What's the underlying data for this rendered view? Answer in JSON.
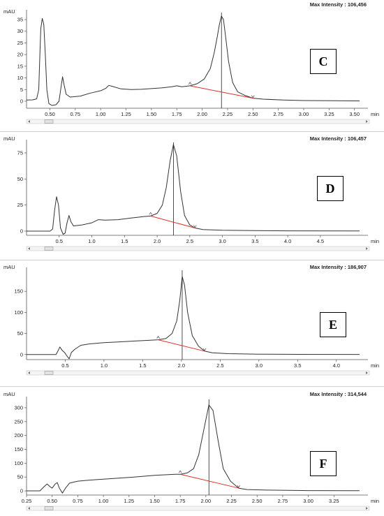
{
  "colors": {
    "trace": "#333333",
    "baseline": "#d9322b",
    "marker": "#444444"
  },
  "chart_data": [
    {
      "type": "line",
      "panel_label": "C",
      "max_intensity": "Max Intensity : 106,456",
      "ylabel": "mAU",
      "xlabel": "min",
      "xlim": [
        0.27,
        3.55
      ],
      "ylim": [
        -3,
        38
      ],
      "x_ticks": [
        0.5,
        0.75,
        1.0,
        1.25,
        1.5,
        1.75,
        2.0,
        2.25,
        2.5,
        2.75,
        3.0,
        3.25,
        3.5
      ],
      "x_tick_labels": [
        "0.50",
        "0.75",
        "1.00",
        "1.25",
        "1.50",
        "1.75",
        "2.00",
        "2.25",
        "2.50",
        "2.75",
        "3.00",
        "3.25",
        "3.50"
      ],
      "y_ticks": [
        0,
        5,
        10,
        15,
        20,
        25,
        30,
        35
      ],
      "y_tick_labels": [
        "0",
        "5",
        "10",
        "15",
        "20",
        "25",
        "30",
        "35"
      ],
      "trace": [
        [
          0.27,
          0.5
        ],
        [
          0.33,
          0.6
        ],
        [
          0.37,
          1
        ],
        [
          0.39,
          5
        ],
        [
          0.4,
          18
        ],
        [
          0.41,
          31
        ],
        [
          0.425,
          35.5
        ],
        [
          0.44,
          33
        ],
        [
          0.455,
          20
        ],
        [
          0.47,
          5
        ],
        [
          0.49,
          -1
        ],
        [
          0.52,
          -1.8
        ],
        [
          0.56,
          -1.5
        ],
        [
          0.59,
          0
        ],
        [
          0.61,
          6
        ],
        [
          0.625,
          10.5
        ],
        [
          0.64,
          7
        ],
        [
          0.66,
          3
        ],
        [
          0.7,
          1.8
        ],
        [
          0.8,
          2.2
        ],
        [
          0.9,
          3.5
        ],
        [
          1.0,
          4.5
        ],
        [
          1.05,
          5.5
        ],
        [
          1.08,
          6.8
        ],
        [
          1.12,
          6.3
        ],
        [
          1.2,
          5.3
        ],
        [
          1.3,
          5.0
        ],
        [
          1.4,
          5.1
        ],
        [
          1.5,
          5.4
        ],
        [
          1.6,
          5.7
        ],
        [
          1.7,
          6.2
        ],
        [
          1.75,
          6.6
        ],
        [
          1.8,
          6.2
        ],
        [
          1.88,
          6.6
        ],
        [
          1.95,
          7.5
        ],
        [
          2.02,
          9.5
        ],
        [
          2.08,
          14
        ],
        [
          2.12,
          21
        ],
        [
          2.15,
          28
        ],
        [
          2.17,
          33
        ],
        [
          2.19,
          36.5
        ],
        [
          2.21,
          35
        ],
        [
          2.23,
          28
        ],
        [
          2.26,
          17
        ],
        [
          2.3,
          8
        ],
        [
          2.35,
          4
        ],
        [
          2.42,
          2.5
        ],
        [
          2.5,
          1.3
        ],
        [
          2.6,
          0.9
        ],
        [
          2.8,
          0.5
        ],
        [
          3.0,
          0.3
        ],
        [
          3.3,
          0.2
        ],
        [
          3.55,
          0.15
        ]
      ],
      "baseline_start": [
        1.88,
        6.6
      ],
      "baseline_end": [
        2.5,
        1.3
      ],
      "peak_x": 2.19
    },
    {
      "type": "line",
      "panel_label": "D",
      "max_intensity": "Max Intensity : 106,457",
      "ylabel": "mAU",
      "xlabel": "min",
      "xlim": [
        0.0,
        5.1
      ],
      "ylim": [
        -4,
        85
      ],
      "x_ticks": [
        0.5,
        1.0,
        1.5,
        2.0,
        2.5,
        3.0,
        3.5,
        4.0,
        4.5
      ],
      "x_tick_labels": [
        "0.5",
        "1.0",
        "1.5",
        "2.0",
        "2.5",
        "3.0",
        "3.5",
        "4.0",
        "4.5"
      ],
      "y_ticks": [
        0,
        25,
        50,
        75
      ],
      "y_tick_labels": [
        "0",
        "25",
        "50",
        "75"
      ],
      "trace": [
        [
          0.0,
          0
        ],
        [
          0.36,
          0
        ],
        [
          0.4,
          2
        ],
        [
          0.43,
          20
        ],
        [
          0.46,
          33
        ],
        [
          0.49,
          25
        ],
        [
          0.52,
          3
        ],
        [
          0.56,
          -3
        ],
        [
          0.59,
          -2
        ],
        [
          0.62,
          8
        ],
        [
          0.65,
          15
        ],
        [
          0.68,
          9
        ],
        [
          0.72,
          5
        ],
        [
          0.85,
          6
        ],
        [
          1.0,
          8
        ],
        [
          1.1,
          11
        ],
        [
          1.2,
          10.5
        ],
        [
          1.4,
          11
        ],
        [
          1.6,
          12.5
        ],
        [
          1.8,
          14
        ],
        [
          1.9,
          14.5
        ],
        [
          2.0,
          17
        ],
        [
          2.08,
          25
        ],
        [
          2.14,
          42
        ],
        [
          2.2,
          68
        ],
        [
          2.25,
          83
        ],
        [
          2.3,
          72
        ],
        [
          2.36,
          38
        ],
        [
          2.42,
          15
        ],
        [
          2.5,
          6
        ],
        [
          2.58,
          3
        ],
        [
          2.7,
          1.5
        ],
        [
          3.0,
          0.8
        ],
        [
          3.5,
          0.5
        ],
        [
          4.0,
          0.3
        ],
        [
          5.1,
          0.2
        ]
      ],
      "baseline_start": [
        1.9,
        14.5
      ],
      "baseline_end": [
        2.58,
        3
      ],
      "peak_x": 2.25
    },
    {
      "type": "line",
      "panel_label": "E",
      "max_intensity": "Max Intensity : 186,907",
      "ylabel": "mAU",
      "xlabel": "min",
      "xlim": [
        0.0,
        4.3
      ],
      "ylim": [
        -12,
        200
      ],
      "x_ticks": [
        0.5,
        1.0,
        1.5,
        2.0,
        2.5,
        3.0,
        3.5,
        4.0
      ],
      "x_tick_labels": [
        "0.5",
        "1.0",
        "1.5",
        "2.0",
        "2.5",
        "3.0",
        "3.5",
        "4.0"
      ],
      "y_ticks": [
        0,
        50,
        100,
        150
      ],
      "y_tick_labels": [
        "0",
        "50",
        "100",
        "150"
      ],
      "trace": [
        [
          0.0,
          0
        ],
        [
          0.38,
          0
        ],
        [
          0.41,
          10
        ],
        [
          0.43,
          18
        ],
        [
          0.46,
          10
        ],
        [
          0.49,
          5
        ],
        [
          0.52,
          -3
        ],
        [
          0.55,
          -10
        ],
        [
          0.58,
          5
        ],
        [
          0.62,
          12
        ],
        [
          0.7,
          22
        ],
        [
          0.8,
          25
        ],
        [
          1.0,
          28
        ],
        [
          1.2,
          30
        ],
        [
          1.4,
          32
        ],
        [
          1.6,
          34
        ],
        [
          1.7,
          35
        ],
        [
          1.8,
          38
        ],
        [
          1.88,
          50
        ],
        [
          1.94,
          80
        ],
        [
          1.98,
          130
        ],
        [
          2.01,
          185
        ],
        [
          2.04,
          165
        ],
        [
          2.08,
          100
        ],
        [
          2.14,
          45
        ],
        [
          2.22,
          20
        ],
        [
          2.3,
          8
        ],
        [
          2.4,
          4
        ],
        [
          2.6,
          2
        ],
        [
          3.0,
          1
        ],
        [
          3.5,
          0.5
        ],
        [
          4.3,
          0.3
        ]
      ],
      "baseline_start": [
        1.7,
        35
      ],
      "baseline_end": [
        2.3,
        8
      ],
      "peak_x": 2.01
    },
    {
      "type": "line",
      "panel_label": "F",
      "max_intensity": "Max Intensity : 314,544",
      "ylabel": "mAU",
      "xlabel": "min",
      "xlim": [
        0.25,
        3.5
      ],
      "ylim": [
        -15,
        330
      ],
      "x_ticks": [
        0.25,
        0.5,
        0.75,
        1.0,
        1.25,
        1.5,
        1.75,
        2.0,
        2.25,
        2.5,
        2.75,
        3.0,
        3.25
      ],
      "x_tick_labels": [
        "0.25",
        "0.50",
        "0.75",
        "1.00",
        "1.25",
        "1.50",
        "1.75",
        "2.00",
        "2.25",
        "2.50",
        "2.75",
        "3.00",
        "3.25"
      ],
      "y_ticks": [
        0,
        50,
        100,
        150,
        200,
        250,
        300
      ],
      "y_tick_labels": [
        "0",
        "50",
        "100",
        "150",
        "200",
        "250",
        "300"
      ],
      "trace": [
        [
          0.25,
          0
        ],
        [
          0.38,
          0
        ],
        [
          0.42,
          15
        ],
        [
          0.45,
          25
        ],
        [
          0.48,
          15
        ],
        [
          0.5,
          10
        ],
        [
          0.53,
          25
        ],
        [
          0.55,
          30
        ],
        [
          0.57,
          10
        ],
        [
          0.6,
          -8
        ],
        [
          0.63,
          10
        ],
        [
          0.67,
          28
        ],
        [
          0.75,
          35
        ],
        [
          0.9,
          40
        ],
        [
          1.1,
          45
        ],
        [
          1.3,
          50
        ],
        [
          1.5,
          56
        ],
        [
          1.7,
          60
        ],
        [
          1.75,
          60
        ],
        [
          1.82,
          65
        ],
        [
          1.88,
          80
        ],
        [
          1.93,
          130
        ],
        [
          1.98,
          220
        ],
        [
          2.03,
          310
        ],
        [
          2.07,
          290
        ],
        [
          2.12,
          180
        ],
        [
          2.17,
          80
        ],
        [
          2.24,
          35
        ],
        [
          2.32,
          10
        ],
        [
          2.4,
          5
        ],
        [
          2.6,
          3
        ],
        [
          3.0,
          1
        ],
        [
          3.5,
          0.5
        ]
      ],
      "baseline_start": [
        1.75,
        60
      ],
      "baseline_end": [
        2.32,
        10
      ],
      "peak_x": 2.03
    }
  ]
}
